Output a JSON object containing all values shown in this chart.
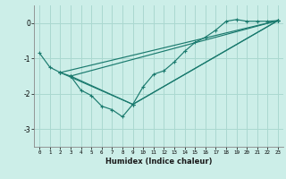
{
  "xlabel": "Humidex (Indice chaleur)",
  "background_color": "#cceee8",
  "grid_color": "#aad8d0",
  "line_color": "#1a7a6e",
  "xlim": [
    -0.5,
    23.5
  ],
  "ylim": [
    -3.5,
    0.5
  ],
  "yticks": [
    0,
    -1,
    -2,
    -3
  ],
  "xticks": [
    0,
    1,
    2,
    3,
    4,
    5,
    6,
    7,
    8,
    9,
    10,
    11,
    12,
    13,
    14,
    15,
    16,
    17,
    18,
    19,
    20,
    21,
    22,
    23
  ],
  "series1_x": [
    0,
    1,
    2,
    3,
    4,
    5,
    6,
    7,
    8,
    9,
    10,
    11,
    12,
    13,
    14,
    15,
    16,
    17,
    18,
    19,
    20,
    21,
    22,
    23
  ],
  "series1_y": [
    -0.85,
    -1.25,
    -1.4,
    -1.5,
    -1.9,
    -2.05,
    -2.35,
    -2.45,
    -2.65,
    -2.3,
    -1.8,
    -1.45,
    -1.35,
    -1.1,
    -0.8,
    -0.55,
    -0.4,
    -0.2,
    0.05,
    0.1,
    0.05,
    0.05,
    0.05,
    0.07
  ],
  "series2_x": [
    2,
    23
  ],
  "series2_y": [
    -1.4,
    0.07
  ],
  "series3_x": [
    2,
    9,
    23
  ],
  "series3_y": [
    -1.4,
    -2.3,
    0.07
  ],
  "series4_x": [
    3,
    23
  ],
  "series4_y": [
    -1.5,
    0.07
  ],
  "series5_x": [
    3,
    9,
    23
  ],
  "series5_y": [
    -1.5,
    -2.3,
    0.07
  ]
}
